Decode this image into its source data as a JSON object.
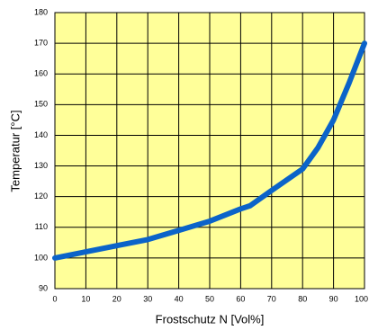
{
  "chart_data": {
    "type": "line",
    "x_label": "Frostschutz N [Vol%]",
    "y_label": "Temperatur [°C]",
    "x": [
      0,
      10,
      20,
      30,
      40,
      50,
      60,
      63,
      70,
      80,
      85,
      90,
      95,
      100
    ],
    "series": [
      {
        "color": "#0b63c9",
        "values": [
          100,
          102,
          104,
          106,
          109,
          112,
          116,
          117,
          122,
          129,
          136,
          145,
          157,
          170
        ]
      }
    ],
    "xlim": [
      0,
      100
    ],
    "xticks": [
      0,
      10,
      20,
      30,
      40,
      50,
      60,
      70,
      80,
      90,
      100
    ],
    "ylim": [
      90,
      180
    ],
    "yticks": [
      90,
      100,
      110,
      120,
      130,
      140,
      150,
      160,
      170,
      180
    ],
    "grid": true,
    "background": "#ffff99"
  }
}
